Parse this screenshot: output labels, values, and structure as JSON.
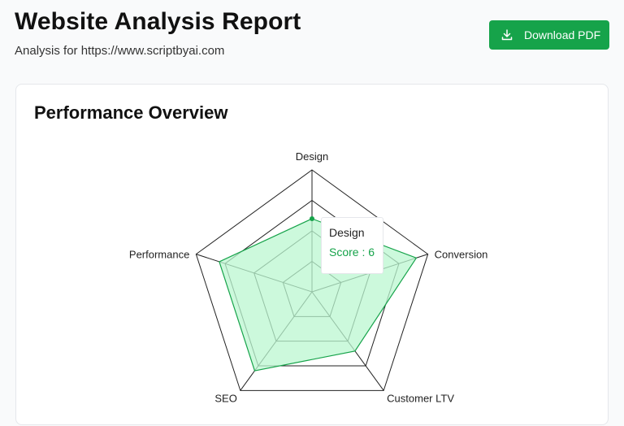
{
  "header": {
    "title": "Website Analysis Report",
    "subtitle": "Analysis for https://www.scriptbyai.com",
    "download_label": "Download PDF"
  },
  "card": {
    "title": "Performance Overview"
  },
  "tooltip": {
    "label": "Design",
    "value_text": "Score : 6"
  },
  "colors": {
    "accent": "#16a34a",
    "fill": "#bbf7d0"
  },
  "chart_data": {
    "type": "radar",
    "categories": [
      "Design",
      "Conversion",
      "Customer LTV",
      "SEO",
      "Performance"
    ],
    "series": [
      {
        "values": [
          6,
          9,
          6,
          8,
          8
        ]
      }
    ],
    "rlim": [
      0,
      10
    ],
    "grid_levels": 4
  }
}
